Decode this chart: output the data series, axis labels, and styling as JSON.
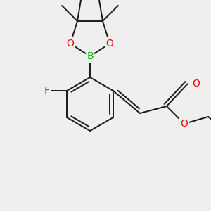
{
  "bg_color": "#efefef",
  "bond_color": "#1a1a1a",
  "bond_lw": 1.4,
  "atom_bg": "#efefef",
  "colors": {
    "O": "#ff0000",
    "B": "#00bb00",
    "F": "#cc00cc",
    "C": "#1a1a1a"
  },
  "fontsize": 10
}
